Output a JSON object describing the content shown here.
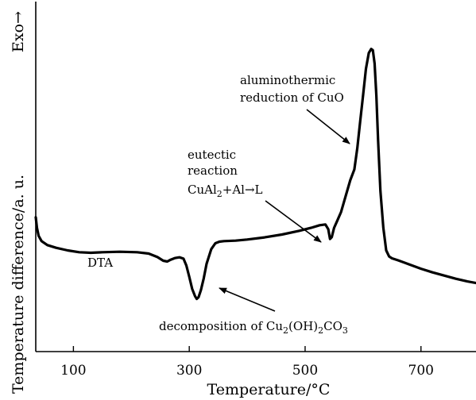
{
  "chart_data": {
    "type": "line",
    "title": "",
    "xlabel": "Temperature/°C",
    "ylabel": "Temperature difference/a. u.",
    "ylabel_arrow": "Exo→",
    "xlim": [
      35,
      795
    ],
    "ylim": [
      0,
      100
    ],
    "yticks_shown": false,
    "grid": false,
    "xticks": [
      100,
      300,
      500,
      700
    ],
    "series": [
      {
        "name": "DTA",
        "x": [
          35,
          37,
          40,
          45,
          55,
          70,
          90,
          110,
          130,
          150,
          180,
          210,
          230,
          245,
          255,
          262,
          268,
          275,
          283,
          290,
          295,
          300,
          305,
          310,
          313,
          316,
          320,
          325,
          330,
          338,
          345,
          352,
          360,
          380,
          400,
          430,
          460,
          490,
          510,
          525,
          535,
          540,
          543,
          546,
          550,
          555,
          562,
          570,
          578,
          585,
          590,
          595,
          600,
          605,
          610,
          614,
          617,
          620,
          623,
          626,
          630,
          635,
          640,
          645,
          650,
          660,
          680,
          700,
          720,
          740,
          760,
          780,
          795
        ],
        "y": [
          36,
          32,
          29,
          27,
          25.5,
          24.5,
          23.5,
          22.8,
          22.6,
          22.8,
          23.0,
          22.8,
          22.3,
          21.0,
          19.6,
          19.3,
          20.0,
          20.6,
          20.9,
          20.4,
          17.8,
          13.5,
          9.0,
          6.2,
          5.2,
          5.8,
          8.5,
          13.0,
          18.5,
          24.0,
          26.2,
          26.8,
          27.0,
          27.2,
          27.6,
          28.4,
          29.5,
          30.9,
          32.0,
          33.0,
          33.3,
          31.5,
          27.8,
          28.5,
          32.0,
          34.5,
          38.0,
          44.0,
          50.0,
          54.0,
          62.0,
          72.0,
          82.0,
          92.0,
          98.0,
          99.5,
          99.0,
          94.0,
          82.0,
          65.0,
          46.0,
          32.0,
          23.5,
          21.2,
          20.5,
          19.8,
          18.2,
          16.6,
          15.2,
          14.0,
          12.8,
          11.8,
          11.2
        ]
      }
    ],
    "annotations": [
      {
        "id": "dta",
        "text": "DTA"
      },
      {
        "id": "decomp",
        "text_main": "decomposition of Cu",
        "sub1": "2",
        "mid": "(OH)",
        "sub2": "2",
        "end": "CO",
        "sub3": "3"
      },
      {
        "id": "eutectic",
        "line1": "eutectic",
        "line2": "reaction",
        "line3_main": "CuAl",
        "line3_sub": "2",
        "line3_end": "+Al→L"
      },
      {
        "id": "alumino",
        "line1": "aluminothermic",
        "line2": "reduction of CuO"
      }
    ],
    "colors": {
      "line": "#000000",
      "axes": "#000000"
    }
  }
}
